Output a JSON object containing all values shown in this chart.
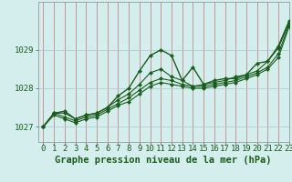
{
  "title": "Graphe pression niveau de la mer (hPa)",
  "bg_color": "#d4eeee",
  "line_color": "#1a5c1a",
  "xlim": [
    -0.5,
    23
  ],
  "ylim": [
    1026.6,
    1030.25
  ],
  "yticks": [
    1027,
    1028,
    1029
  ],
  "xticks": [
    0,
    1,
    2,
    3,
    4,
    5,
    6,
    7,
    8,
    9,
    10,
    11,
    12,
    13,
    14,
    15,
    16,
    17,
    18,
    19,
    20,
    21,
    22,
    23
  ],
  "series": [
    [
      1027.0,
      1027.35,
      1027.4,
      1027.2,
      1027.3,
      1027.35,
      1027.5,
      1027.8,
      1028.0,
      1028.45,
      1028.85,
      1029.0,
      1028.85,
      1028.2,
      1028.55,
      1028.1,
      1028.2,
      1028.25,
      1028.25,
      1028.35,
      1028.65,
      1028.7,
      1029.1,
      1029.75
    ],
    [
      1027.0,
      1027.35,
      1027.35,
      1027.2,
      1027.3,
      1027.35,
      1027.5,
      1027.7,
      1027.85,
      1028.1,
      1028.4,
      1028.5,
      1028.3,
      1028.2,
      1028.05,
      1028.1,
      1028.15,
      1028.2,
      1028.3,
      1028.35,
      1028.45,
      1028.7,
      1029.05,
      1029.7
    ],
    [
      1027.0,
      1027.35,
      1027.25,
      1027.15,
      1027.25,
      1027.3,
      1027.45,
      1027.6,
      1027.75,
      1027.95,
      1028.15,
      1028.25,
      1028.2,
      1028.1,
      1028.05,
      1028.05,
      1028.1,
      1028.15,
      1028.2,
      1028.3,
      1028.4,
      1028.55,
      1028.9,
      1029.65
    ],
    [
      1027.0,
      1027.3,
      1027.2,
      1027.1,
      1027.2,
      1027.25,
      1027.4,
      1027.55,
      1027.65,
      1027.85,
      1028.05,
      1028.15,
      1028.1,
      1028.05,
      1028.0,
      1028.0,
      1028.05,
      1028.1,
      1028.15,
      1028.25,
      1028.35,
      1028.5,
      1028.8,
      1029.6
    ]
  ],
  "marker_on_series": [
    0,
    1,
    2,
    3
  ],
  "xlabel_fontsize": 7.5,
  "tick_fontsize": 6.5
}
